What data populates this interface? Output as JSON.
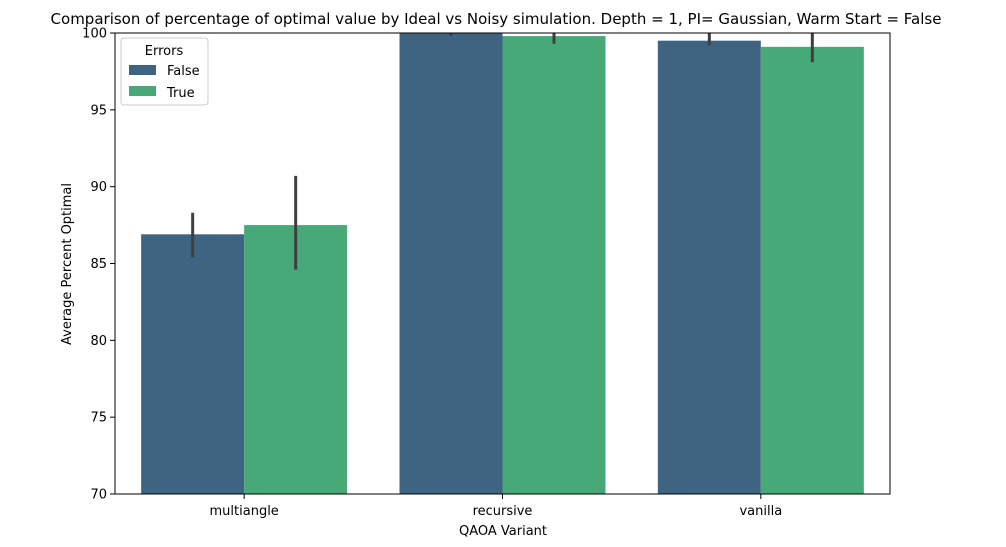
{
  "chart_data": {
    "type": "bar",
    "title": "Comparison of percentage of optimal value by Ideal vs Noisy simulation. Depth = 1, PI= Gaussian, Warm Start = False",
    "xlabel": "QAOA Variant",
    "ylabel": "Average Percent Optimal",
    "categories": [
      "multiangle",
      "recursive",
      "vanilla"
    ],
    "ylim": [
      70,
      100
    ],
    "yticks": [
      70,
      75,
      80,
      85,
      90,
      95,
      100
    ],
    "grid": false,
    "legend": {
      "title": "Errors",
      "placement": "top-left"
    },
    "series": [
      {
        "name": "False",
        "color": "#3e6482",
        "values": [
          86.9,
          100.0,
          99.5
        ],
        "err_low": [
          85.4,
          99.8,
          99.2
        ],
        "err_high": [
          88.3,
          100.0,
          100.0
        ]
      },
      {
        "name": "True",
        "color": "#47a878",
        "values": [
          87.5,
          99.8,
          99.1
        ],
        "err_low": [
          84.6,
          99.3,
          98.1
        ],
        "err_high": [
          90.7,
          100.0,
          100.0
        ]
      }
    ],
    "errorbar_color": "#3f3f3f"
  }
}
